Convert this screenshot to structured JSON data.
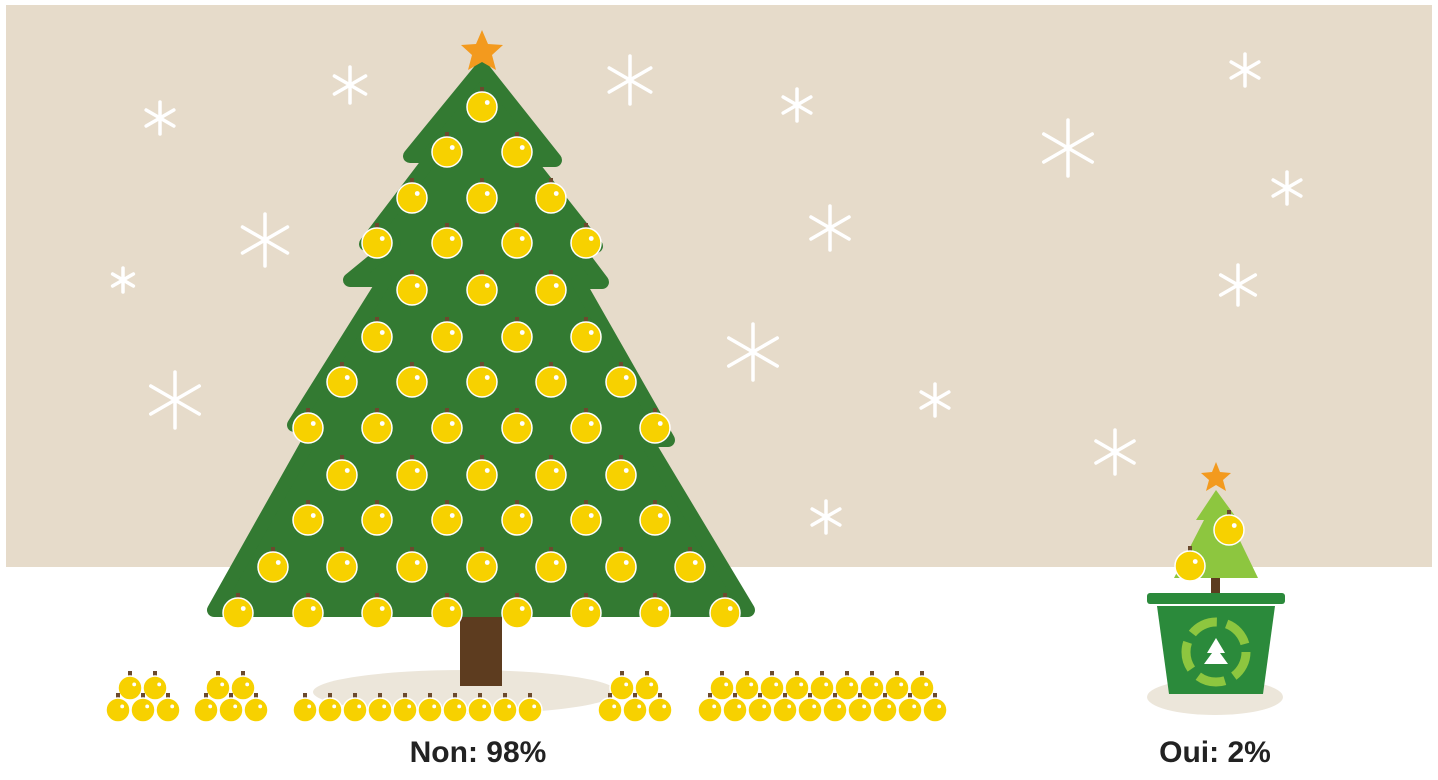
{
  "chart_data": {
    "type": "pictograph",
    "categories": [
      "Non:",
      "Oui:"
    ],
    "values": [
      98,
      2
    ],
    "value_labels": [
      "98%",
      "2%"
    ]
  }
}
